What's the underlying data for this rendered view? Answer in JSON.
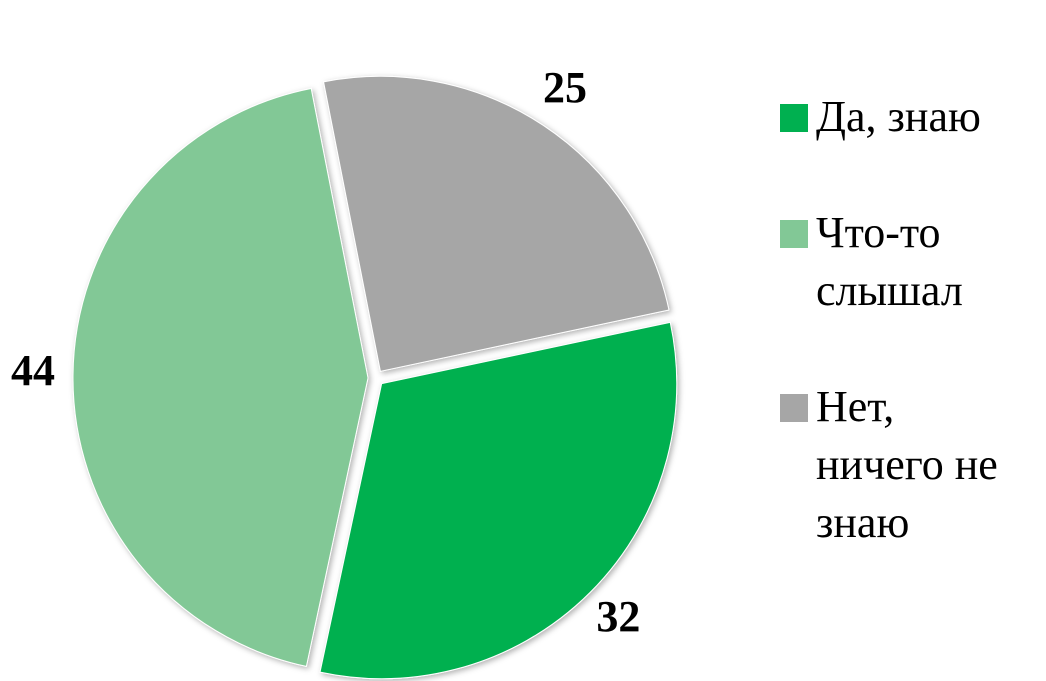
{
  "chart_data": {
    "type": "pie",
    "categories": [
      "Да, знаю",
      "Что-то слышал",
      "Нет, ничего не знаю"
    ],
    "values": [
      32,
      44,
      25
    ],
    "colors": [
      "#00b050",
      "#82c896",
      "#a6a6a6"
    ],
    "legend": "right"
  }
}
